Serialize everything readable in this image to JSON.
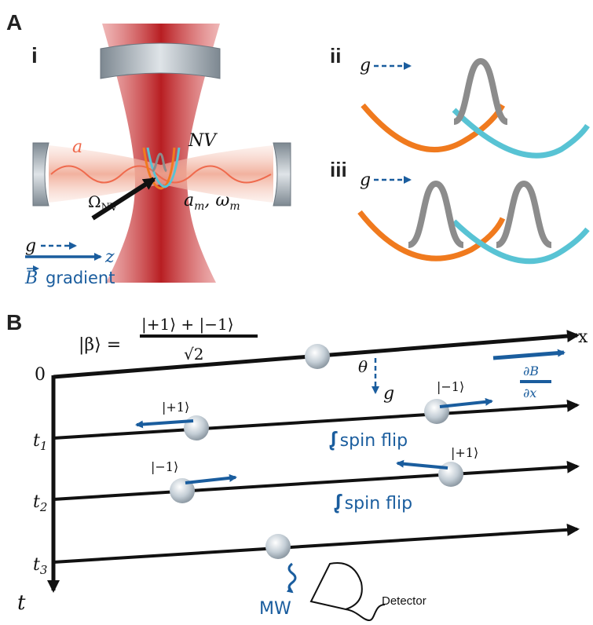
{
  "panel_A": {
    "label": "A",
    "sub_i": "i",
    "sub_ii": "ii",
    "sub_iii": "iii",
    "cavity_mode": "a",
    "nv": "NV",
    "drive": "Ω",
    "drive_sub": "NV",
    "mech_mode": "a",
    "mech_sub": "m",
    "omega": "ω",
    "omega_sub": "m",
    "g": "g",
    "z": "z",
    "b_symbol": "B",
    "b_gradient": "gradient",
    "g_ii": "g",
    "g_iii": "g"
  },
  "panel_B": {
    "label": "B",
    "state_lhs": "|β⟩ =",
    "state_num": "|+1⟩ + |−1⟩",
    "state_den": "√2",
    "x_axis": "x",
    "t_axis": "t",
    "times": [
      "0",
      "t",
      "t",
      "t"
    ],
    "time_subs": [
      "",
      "1",
      "2",
      "3"
    ],
    "theta": "θ",
    "g": "g",
    "grad_num": "∂B",
    "grad_den": "∂x",
    "kets": [
      "|−1⟩",
      "|+1⟩",
      "|−1⟩",
      "|+1⟩"
    ],
    "spin_flip": "spin flip",
    "mw": "MW",
    "detector": "Detector"
  },
  "colors": {
    "laser": "#c0282a",
    "cavity": "#f2b9a6",
    "mirror": "#9aa4ad",
    "orange": "#f07a1e",
    "cyan": "#58c3d4",
    "gray": "#8c8c8c",
    "blue": "#1a5d9e",
    "black": "#111111"
  }
}
